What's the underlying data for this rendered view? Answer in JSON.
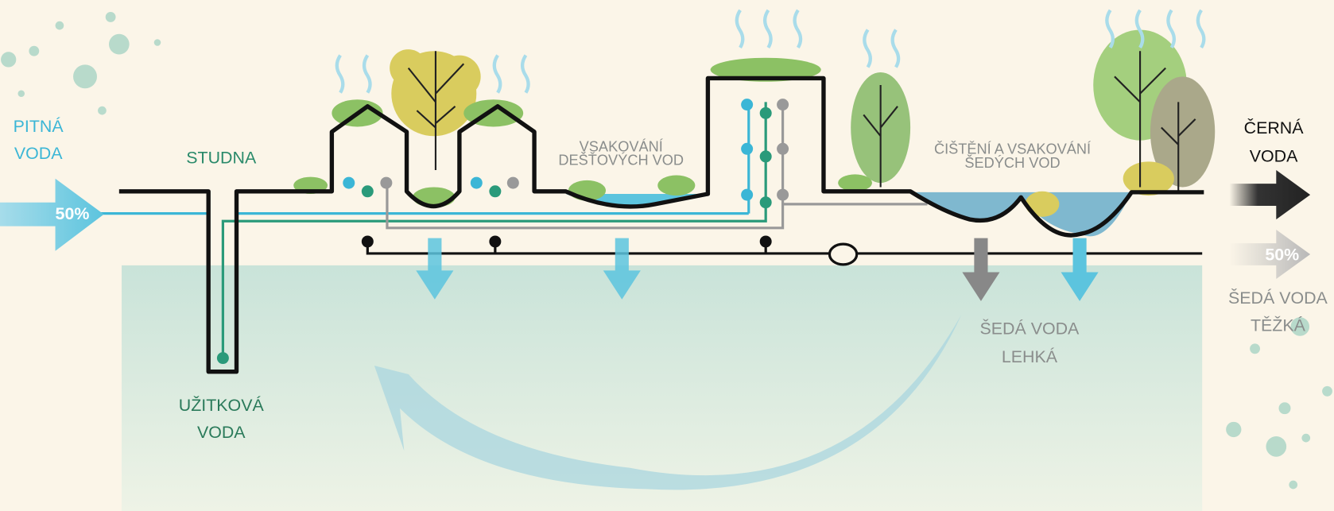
{
  "labels": {
    "potable": [
      "PITNÁ",
      "VODA"
    ],
    "potable_share": "50%",
    "well": "STUDNA",
    "service_water": [
      "UŽITKOVÁ",
      "VODA"
    ],
    "rain_infiltration": [
      "VSAKOVÁNÍ",
      "DEŠŤOVÝCH VOD"
    ],
    "grey_treatment": [
      "ČIŠTĚNÍ A VSAKOVÁNÍ",
      "ŠEDÝCH VOD"
    ],
    "black_water": [
      "ČERNÁ",
      "VODA"
    ],
    "grey_share": "50%",
    "grey_heavy": [
      "ŠEDÁ VODA",
      "TĚŽKÁ"
    ],
    "grey_light": [
      "ŠEDÁ VODA",
      "LEHKÁ"
    ]
  }
}
